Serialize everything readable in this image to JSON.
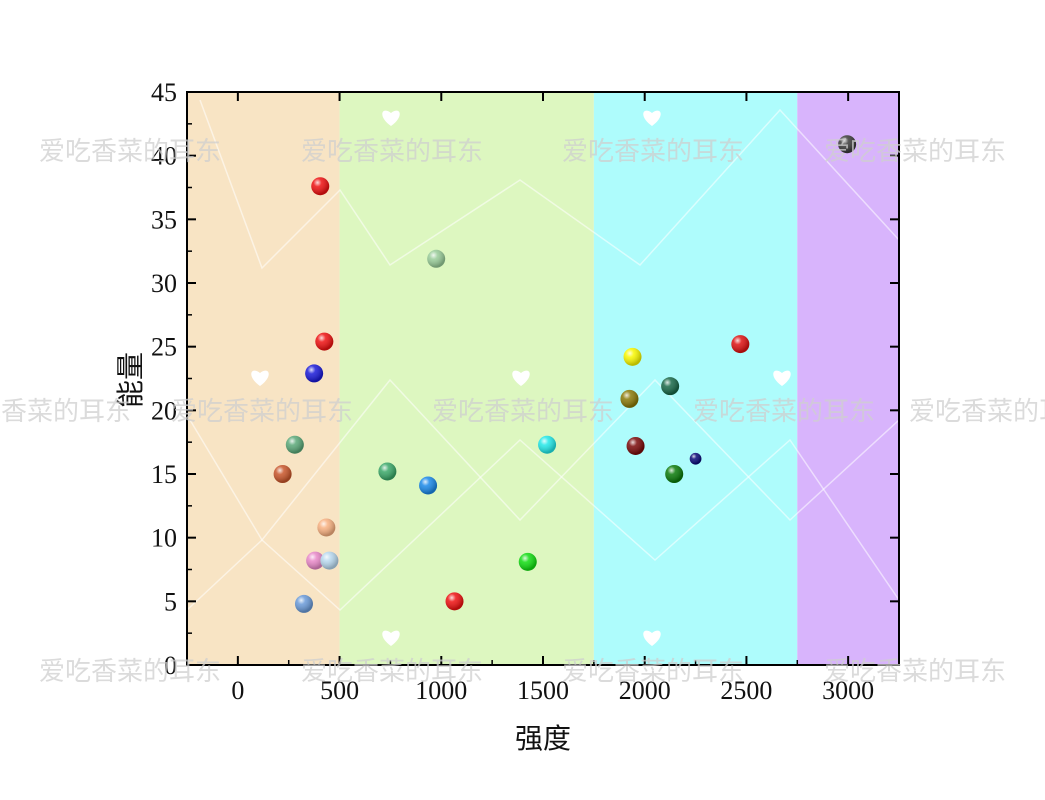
{
  "chart_data": {
    "type": "scatter",
    "xlabel": "强度",
    "ylabel": "能量",
    "xlim": [
      -250,
      3250
    ],
    "ylim": [
      0,
      45
    ],
    "x_ticks": [
      0,
      500,
      1000,
      1500,
      2000,
      2500,
      3000
    ],
    "y_ticks": [
      0,
      5,
      10,
      15,
      20,
      25,
      30,
      35,
      40,
      45
    ],
    "grid": false,
    "legend": "none",
    "bands": [
      {
        "x0": -250,
        "x1": 500,
        "color": "#f8e4c4"
      },
      {
        "x0": 500,
        "x1": 1750,
        "color": "#ddf7c0"
      },
      {
        "x0": 1750,
        "x1": 2750,
        "color": "#aefcfc"
      },
      {
        "x0": 2750,
        "x1": 3250,
        "color": "#d8b4fc"
      }
    ],
    "points": [
      {
        "x": 405,
        "y": 37.6,
        "color": "#ee1111"
      },
      {
        "x": 425,
        "y": 25.4,
        "color": "#ee1111"
      },
      {
        "x": 375,
        "y": 22.9,
        "color": "#1a1ad8"
      },
      {
        "x": 280,
        "y": 17.3,
        "color": "#5aa878"
      },
      {
        "x": 220,
        "y": 15.0,
        "color": "#c8552a"
      },
      {
        "x": 435,
        "y": 10.8,
        "color": "#f8b080"
      },
      {
        "x": 380,
        "y": 8.2,
        "color": "#e888c8"
      },
      {
        "x": 450,
        "y": 8.2,
        "color": "#b8d8ee"
      },
      {
        "x": 325,
        "y": 4.8,
        "color": "#6a9ad8"
      },
      {
        "x": 975,
        "y": 31.9,
        "color": "#98cc98"
      },
      {
        "x": 735,
        "y": 15.2,
        "color": "#3aa868"
      },
      {
        "x": 935,
        "y": 14.1,
        "color": "#1a88e8"
      },
      {
        "x": 1425,
        "y": 8.1,
        "color": "#11dd11"
      },
      {
        "x": 1065,
        "y": 5.0,
        "color": "#ee1111"
      },
      {
        "x": 1520,
        "y": 17.3,
        "color": "#22e8e8"
      },
      {
        "x": 1940,
        "y": 24.2,
        "color": "#f8f800"
      },
      {
        "x": 2470,
        "y": 25.2,
        "color": "#dd1111"
      },
      {
        "x": 1925,
        "y": 20.9,
        "color": "#8a7a08"
      },
      {
        "x": 2125,
        "y": 21.9,
        "color": "#186848"
      },
      {
        "x": 1955,
        "y": 17.2,
        "color": "#7a0a0a"
      },
      {
        "x": 2250,
        "y": 16.2,
        "color": "#0a0a78"
      },
      {
        "x": 2145,
        "y": 15.0,
        "color": "#0a7a0a"
      },
      {
        "x": 2995,
        "y": 40.9,
        "color": "#3a3a3a"
      }
    ],
    "sizes": [
      1,
      1,
      1,
      1,
      1,
      1,
      1,
      1,
      1,
      1,
      1,
      1,
      1,
      1,
      1,
      1,
      1,
      1,
      1,
      1,
      0.65,
      1,
      1
    ]
  },
  "watermark": "爱吃香菜的耳东"
}
